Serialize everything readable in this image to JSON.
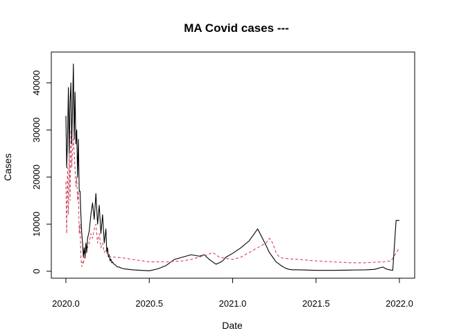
{
  "chart_data": {
    "type": "line",
    "title": "MA Covid cases ---",
    "xlabel": "Date",
    "ylabel": "Cases",
    "xlim": [
      2020.0,
      2022.0
    ],
    "ylim": [
      0,
      44000
    ],
    "x_ticks": [
      "2020.0",
      "2020.5",
      "2021.0",
      "2021.5",
      "2022.0"
    ],
    "y_ticks": [
      "0",
      "10000",
      "20000",
      "30000",
      "40000"
    ],
    "grid": false,
    "legend": "none",
    "series": [
      {
        "color": "#000000",
        "line_style": "solid",
        "x": [
          2.0,
          2.005,
          2.01,
          2.015,
          2.02,
          2.025,
          2.03,
          2.035,
          2.04,
          2.045,
          2.05,
          2.055,
          2.06,
          2.065,
          2.07,
          2.075,
          2.08,
          2.085,
          2.09,
          2.095,
          2.1,
          2.105,
          2.11,
          2.115,
          2.12,
          2.125,
          2.13,
          2.14,
          2.15,
          2.16,
          2.17,
          2.18,
          2.19,
          2.2,
          2.21,
          2.22,
          2.23,
          2.24,
          2.245,
          2.25,
          2.255,
          2.26,
          2.265,
          2.27,
          2.275,
          2.28,
          2.285,
          2.29,
          2.295,
          2.3,
          2.31,
          2.32,
          2.33,
          2.35,
          2.4,
          2.45,
          2.5,
          2.55,
          2.6,
          2.65,
          2.7,
          2.75,
          2.8,
          2.83,
          2.86,
          2.88,
          2.9,
          2.92,
          2.94,
          2.96,
          3.0,
          3.05,
          3.1,
          3.15,
          3.2,
          3.22,
          3.24,
          3.26,
          3.28,
          3.29,
          3.3,
          3.31,
          3.32,
          3.34,
          3.36,
          3.4,
          3.5,
          3.6,
          3.7,
          3.8,
          3.85,
          3.9,
          3.92,
          3.94,
          3.96,
          3.98,
          3.995,
          4.0
        ],
        "y": [
          33000,
          22000,
          28000,
          39000,
          25000,
          36000,
          40000,
          27000,
          35000,
          44000,
          28000,
          38000,
          27000,
          30000,
          20000,
          28000,
          17000,
          17000,
          12000,
          8000,
          6000,
          3000,
          5000,
          3000,
          6000,
          4000,
          7000,
          8500,
          12000,
          14500,
          11000,
          16500,
          10000,
          14000,
          8000,
          12000,
          6000,
          9000,
          4000,
          5000,
          3000,
          3500,
          2200,
          2600,
          1800,
          2000,
          1600,
          1500,
          1400,
          1200,
          900,
          900,
          700,
          500,
          300,
          200,
          100,
          500,
          1200,
          2500,
          3000,
          3500,
          3200,
          3500,
          2500,
          2000,
          1500,
          1800,
          2200,
          3000,
          3800,
          5000,
          6500,
          9000,
          5500,
          4000,
          3000,
          2000,
          1500,
          1200,
          1000,
          800,
          600,
          400,
          300,
          300,
          200,
          200,
          250,
          300,
          400,
          900,
          500,
          300,
          200,
          10800,
          10800,
          10800
        ]
      },
      {
        "color": "#d2435a",
        "line_style": "dashed",
        "x": [
          2.0,
          2.005,
          2.01,
          2.015,
          2.02,
          2.025,
          2.03,
          2.035,
          2.04,
          2.045,
          2.05,
          2.055,
          2.06,
          2.065,
          2.07,
          2.075,
          2.08,
          2.085,
          2.09,
          2.095,
          2.1,
          2.105,
          2.11,
          2.115,
          2.12,
          2.13,
          2.14,
          2.15,
          2.16,
          2.17,
          2.18,
          2.19,
          2.2,
          2.21,
          2.22,
          2.23,
          2.24,
          2.25,
          2.27,
          2.3,
          2.35,
          2.4,
          2.5,
          2.6,
          2.7,
          2.75,
          2.8,
          2.85,
          2.88,
          2.9,
          2.92,
          2.95,
          3.0,
          3.05,
          3.1,
          3.15,
          3.2,
          3.22,
          3.24,
          3.26,
          3.28,
          3.3,
          3.35,
          3.4,
          3.5,
          3.6,
          3.7,
          3.8,
          3.9,
          3.95,
          4.0
        ],
        "y": [
          19000,
          8000,
          22000,
          12000,
          25000,
          15000,
          30000,
          22000,
          26000,
          28000,
          25000,
          22000,
          18000,
          20000,
          15000,
          17000,
          8000,
          10000,
          3000,
          1000,
          2000,
          1500,
          3000,
          2500,
          4000,
          5000,
          6000,
          8000,
          7000,
          9000,
          10000,
          6000,
          8000,
          5000,
          6000,
          4000,
          4500,
          3500,
          3000,
          3000,
          2800,
          2500,
          2000,
          2000,
          2200,
          2500,
          3000,
          3500,
          4000,
          3500,
          3000,
          2800,
          2500,
          3000,
          4000,
          5000,
          6000,
          7000,
          6000,
          4000,
          3000,
          2800,
          2600,
          2500,
          2200,
          2000,
          1800,
          1800,
          2000,
          2200,
          5000
        ]
      }
    ]
  }
}
